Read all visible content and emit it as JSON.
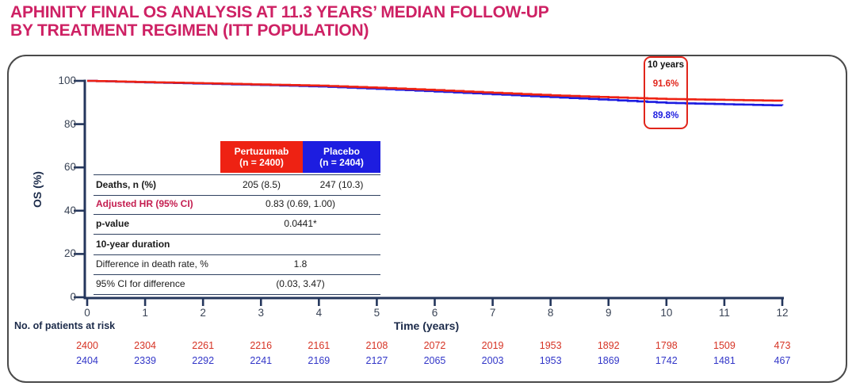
{
  "title": {
    "line1": "APHINITY FINAL OS ANALYSIS AT 11.3 YEARS’ MEDIAN FOLLOW-UP",
    "line2": "BY TREATMENT REGIMEN (ITT POPULATION)"
  },
  "colors": {
    "title": "#CE2164",
    "pertuzumab_red": "#EE2213",
    "placebo_blue": "#1D1DE0",
    "axis_navy": "#24365C",
    "hr_crimson": "#C41E50",
    "callout_border": "#E1251B",
    "at_risk_red": "#D63324",
    "at_risk_blue": "#3236C8"
  },
  "chart_data": {
    "type": "line",
    "title": "",
    "xlabel": "Time (years)",
    "ylabel": "OS (%)",
    "xlim": [
      0,
      12
    ],
    "ylim": [
      0,
      100
    ],
    "xticks": [
      0,
      1,
      2,
      3,
      4,
      5,
      6,
      7,
      8,
      9,
      10,
      11,
      12
    ],
    "yticks": [
      0,
      20,
      40,
      60,
      80,
      100
    ],
    "grid": false,
    "legend_position": "none",
    "series": [
      {
        "name": "Pertuzumab",
        "color": "#EE2213",
        "x": [
          0,
          1,
          2,
          3,
          4,
          5,
          6,
          7,
          8,
          9,
          10,
          11,
          12
        ],
        "values": [
          100,
          99.4,
          98.9,
          98.3,
          97.8,
          96.8,
          95.7,
          94.5,
          93.3,
          92.4,
          91.6,
          91.2,
          90.8
        ]
      },
      {
        "name": "Placebo",
        "color": "#1D1DE0",
        "x": [
          0,
          1,
          2,
          3,
          4,
          5,
          6,
          7,
          8,
          9,
          10,
          11,
          12
        ],
        "values": [
          100,
          99.3,
          98.7,
          98.1,
          97.4,
          96.3,
          95.1,
          93.8,
          92.5,
          91.2,
          89.8,
          89.2,
          88.6
        ]
      }
    ],
    "annotation": {
      "label": "10 years",
      "at_year": 10,
      "pertuzumab_value": "91.6%",
      "placebo_value": "89.8%"
    }
  },
  "stats_table": {
    "columns": [
      {
        "label": "Pertuzumab",
        "sub": "(n = 2400)",
        "color": "#EE2213"
      },
      {
        "label": "Placebo",
        "sub": "(n = 2404)",
        "color": "#1D1DE0"
      }
    ],
    "rows": [
      {
        "label": "Deaths, n (%)",
        "values": [
          "205 (8.5)",
          "247 (10.3)"
        ]
      },
      {
        "label": "Adjusted HR (95% CI)",
        "span": "0.83 (0.69, 1.00)"
      },
      {
        "label": "p-value",
        "span": "0.0441*"
      },
      {
        "label": "10-year duration",
        "span": ""
      },
      {
        "label": "Difference in death rate, %",
        "span": "1.8"
      },
      {
        "label": "95% CI for difference",
        "span": "(0.03, 3.47)"
      }
    ]
  },
  "at_risk": {
    "label": "No. of patients at risk",
    "xlabel": "Time (years)",
    "rows": [
      {
        "name": "Pertuzumab",
        "color": "#D63324",
        "values": [
          "2400",
          "2304",
          "2261",
          "2216",
          "2161",
          "2108",
          "2072",
          "2019",
          "1953",
          "1892",
          "1798",
          "1509",
          "473"
        ]
      },
      {
        "name": "Placebo",
        "color": "#3236C8",
        "values": [
          "2404",
          "2339",
          "2292",
          "2241",
          "2169",
          "2127",
          "2065",
          "2003",
          "1953",
          "1869",
          "1742",
          "1481",
          "467"
        ]
      }
    ]
  }
}
